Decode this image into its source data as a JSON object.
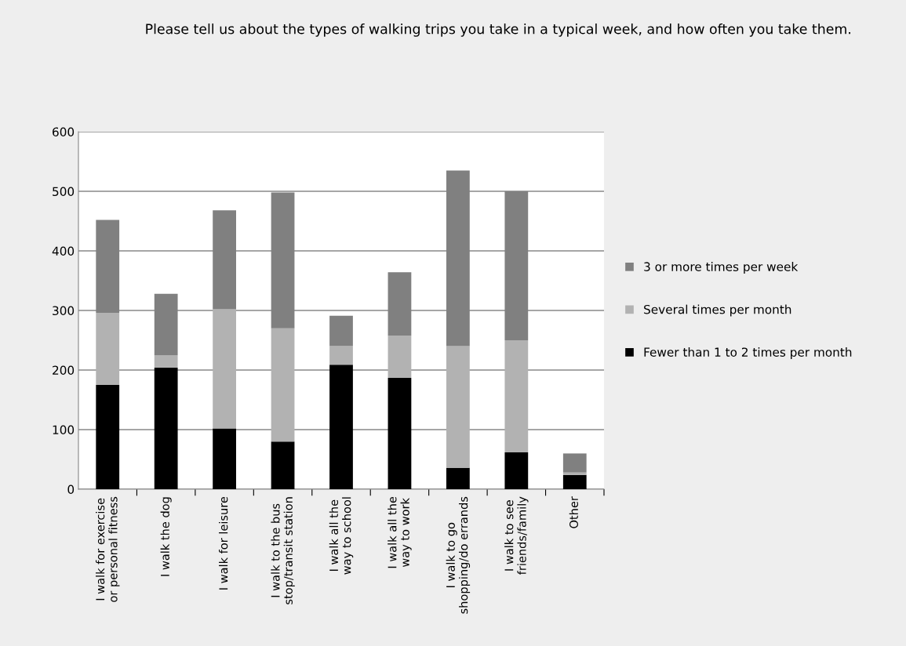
{
  "chart_data": {
    "type": "bar",
    "title": "Please tell us about the types of walking trips you take in a typical week, and how often you take them.",
    "categories": [
      "I walk for exercise or personal fitness",
      "I walk the dog",
      "I walk for leisure",
      "I walk to the bus stop/transit station",
      "I walk all the way to school",
      "I walk all the way to work",
      "I walk to go shopping/do errands",
      "I walk to see friends/family",
      "Other"
    ],
    "stacked": true,
    "series": [
      {
        "name": "Fewer than 1 to 2 times per month",
        "color": "#000000",
        "values": [
          175,
          204,
          102,
          80,
          209,
          187,
          36,
          62,
          24
        ]
      },
      {
        "name": "Several times per month",
        "color": "#b2b2b2",
        "values": [
          121,
          21,
          200,
          190,
          31,
          71,
          204,
          188,
          4
        ]
      },
      {
        "name": "3 or more times per week",
        "color": "#808080",
        "values": [
          156,
          103,
          166,
          228,
          51,
          106,
          295,
          250,
          32
        ]
      }
    ],
    "ylim": [
      0,
      600
    ],
    "yticks": [
      0,
      100,
      200,
      300,
      400,
      500,
      600
    ],
    "grid": "y",
    "legend": "right"
  }
}
